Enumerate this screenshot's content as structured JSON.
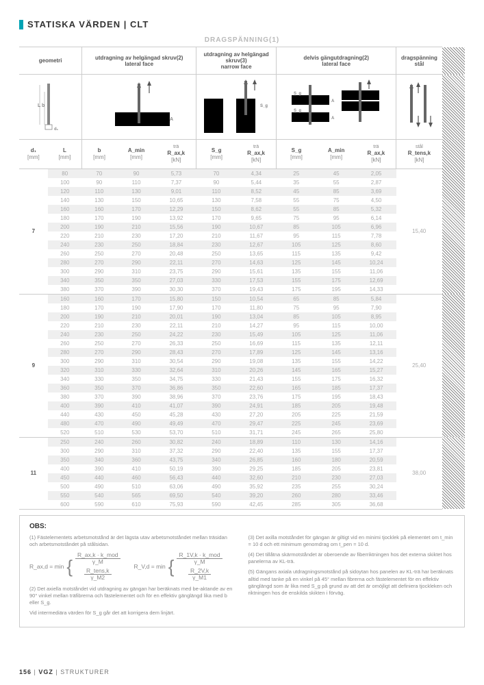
{
  "title": "STATISKA VÄRDEN | CLT",
  "super_header": "DRAGSPÄNNING(1)",
  "group_headers": [
    "geometri",
    "utdragning av helgängad skruv(2)\nlateral face",
    "utdragning av helgängad skruv(3)\nnarrow face",
    "delvis gängutdragning(2)\nlateral face",
    "dragspänning\nstål"
  ],
  "col_syms": [
    "d₁",
    "L",
    "b",
    "A_min",
    "R_ax,k",
    "S_g",
    "R_ax,k",
    "S_g",
    "A_min",
    "R_ax,k",
    "R_tens,k"
  ],
  "col_labels": [
    "",
    "",
    "",
    "",
    "trä",
    "",
    "trä",
    "",
    "",
    "trä",
    "stål"
  ],
  "col_units": [
    "[mm]",
    "[mm]",
    "[mm]",
    "[mm]",
    "[kN]",
    "[mm]",
    "[kN]",
    "[mm]",
    "[mm]",
    "[kN]",
    "[kN]"
  ],
  "groups": [
    {
      "d": "7",
      "last": "15,40",
      "rows": [
        [
          "80",
          "70",
          "90",
          "5,73",
          "70",
          "4,34",
          "25",
          "45",
          "2,05"
        ],
        [
          "100",
          "90",
          "110",
          "7,37",
          "90",
          "5,44",
          "35",
          "55",
          "2,87"
        ],
        [
          "120",
          "110",
          "130",
          "9,01",
          "110",
          "8,52",
          "45",
          "85",
          "3,69"
        ],
        [
          "140",
          "130",
          "150",
          "10,65",
          "130",
          "7,58",
          "55",
          "75",
          "4,50"
        ],
        [
          "160",
          "160",
          "170",
          "12,29",
          "150",
          "8,62",
          "55",
          "85",
          "5,32"
        ],
        [
          "180",
          "170",
          "190",
          "13,92",
          "170",
          "9,65",
          "75",
          "95",
          "6,14"
        ],
        [
          "200",
          "190",
          "210",
          "15,56",
          "190",
          "10,67",
          "85",
          "105",
          "6,96"
        ],
        [
          "220",
          "210",
          "230",
          "17,20",
          "210",
          "11,67",
          "95",
          "115",
          "7,78"
        ],
        [
          "240",
          "230",
          "250",
          "18,84",
          "230",
          "12,67",
          "105",
          "125",
          "8,60"
        ],
        [
          "260",
          "250",
          "270",
          "20,48",
          "250",
          "13,65",
          "115",
          "135",
          "9,42"
        ],
        [
          "280",
          "270",
          "290",
          "22,11",
          "270",
          "14,63",
          "125",
          "145",
          "10,24"
        ],
        [
          "300",
          "290",
          "310",
          "23,75",
          "290",
          "15,61",
          "135",
          "155",
          "11,06"
        ],
        [
          "340",
          "350",
          "350",
          "27,03",
          "330",
          "17,53",
          "155",
          "175",
          "12,69"
        ],
        [
          "380",
          "370",
          "390",
          "30,30",
          "370",
          "19,43",
          "175",
          "195",
          "14,33"
        ]
      ]
    },
    {
      "d": "9",
      "last": "25,40",
      "rows": [
        [
          "160",
          "160",
          "170",
          "15,80",
          "150",
          "10,54",
          "65",
          "85",
          "5,84"
        ],
        [
          "180",
          "170",
          "190",
          "17,90",
          "170",
          "11,80",
          "75",
          "95",
          "7,90"
        ],
        [
          "200",
          "190",
          "210",
          "20,01",
          "190",
          "13,04",
          "85",
          "105",
          "8,95"
        ],
        [
          "220",
          "210",
          "230",
          "22,11",
          "210",
          "14,27",
          "95",
          "115",
          "10,00"
        ],
        [
          "240",
          "230",
          "250",
          "24,22",
          "230",
          "15,49",
          "105",
          "125",
          "11,06"
        ],
        [
          "260",
          "250",
          "270",
          "26,33",
          "250",
          "16,69",
          "115",
          "135",
          "12,11"
        ],
        [
          "280",
          "270",
          "290",
          "28,43",
          "270",
          "17,89",
          "125",
          "145",
          "13,16"
        ],
        [
          "300",
          "290",
          "310",
          "30,54",
          "290",
          "19,08",
          "135",
          "155",
          "14,22"
        ],
        [
          "320",
          "310",
          "330",
          "32,64",
          "310",
          "20,26",
          "145",
          "165",
          "15,27"
        ],
        [
          "340",
          "330",
          "350",
          "34,75",
          "330",
          "21,43",
          "155",
          "175",
          "16,32"
        ],
        [
          "360",
          "350",
          "370",
          "36,86",
          "350",
          "22,60",
          "165",
          "185",
          "17,37"
        ],
        [
          "380",
          "370",
          "390",
          "38,96",
          "370",
          "23,76",
          "175",
          "195",
          "18,43"
        ],
        [
          "400",
          "390",
          "410",
          "41,07",
          "390",
          "24,91",
          "185",
          "205",
          "19,48"
        ],
        [
          "440",
          "430",
          "450",
          "45,28",
          "430",
          "27,20",
          "205",
          "225",
          "21,59"
        ],
        [
          "480",
          "470",
          "490",
          "49,49",
          "470",
          "29,47",
          "225",
          "245",
          "23,69"
        ],
        [
          "520",
          "510",
          "530",
          "53,70",
          "510",
          "31,71",
          "245",
          "265",
          "25,80"
        ]
      ]
    },
    {
      "d": "11",
      "last": "38,00",
      "rows": [
        [
          "250",
          "240",
          "260",
          "30,82",
          "240",
          "18,89",
          "110",
          "130",
          "14,16"
        ],
        [
          "300",
          "290",
          "310",
          "37,32",
          "290",
          "22,40",
          "135",
          "155",
          "17,37"
        ],
        [
          "350",
          "340",
          "360",
          "43,75",
          "340",
          "26,85",
          "160",
          "180",
          "20,59"
        ],
        [
          "400",
          "390",
          "410",
          "50,19",
          "390",
          "29,25",
          "185",
          "205",
          "23,81"
        ],
        [
          "450",
          "440",
          "460",
          "56,43",
          "440",
          "32,60",
          "210",
          "230",
          "27,03"
        ],
        [
          "500",
          "490",
          "510",
          "63,06",
          "490",
          "35,92",
          "235",
          "255",
          "30,24"
        ],
        [
          "550",
          "540",
          "565",
          "69,50",
          "540",
          "39,20",
          "260",
          "280",
          "33,46"
        ],
        [
          "600",
          "590",
          "610",
          "75,93",
          "590",
          "42,45",
          "285",
          "305",
          "36,68"
        ]
      ]
    }
  ],
  "obs_title": "OBS:",
  "notes_left": [
    "(1) Fästelementets arbetsmotstånd är det lägsta utav arbetsmotståndet mellan träsidan och arbetsmotståndet på stålsidan.",
    "(2) Det axiella motståndet vid utdragning av gängan har beräknats med be-aktande av en 90° vinkel mellan träfibrerna och fästelementet och för en effektiv gänglängd lika med b eller S_g.",
    "Vid intermediära värden för S_g går det att korrigera dem linjärt."
  ],
  "notes_right": [
    "(3) Det axilla motståndet för gängan är giltigt vid en minimi tjocklek på elementet om t_min = 10 d och ett minimum genomdrag om t_pen = 10 d.",
    "(4) Det tillåtna skärmotståndet är oberoende av fiberriktningen hos det externa skiktet hos panelerna av KL-trä.",
    "(5) Gängans axiala utdragningsmotstånd på sidoytan hos panelen av KL-trä har beräknats alltid med tanke på en vinkel på 45° mellan fibrerna och fästelementet för en effektiv gänglängd som är lika med S_g på grund av att det är omöjligt att definiera tjockleken och riktningen hos de enskilda skikten i förväg."
  ],
  "formula": {
    "lhs": "R_ax,d = min",
    "n1": "R_ax,k · k_mod",
    "d1": "γ_M",
    "n2": "R_tens,k",
    "d2": "γ_M2",
    "mid": "R_V,d = min",
    "n3": "R_1V,k · k_mod",
    "d3": "γ_M",
    "n4": "R_2V,k",
    "d4": "γ_M1"
  },
  "footer": {
    "page": "156",
    "sep": " | ",
    "brand": "VGZ",
    "sep2": " | ",
    "section": "STRUKTURER"
  }
}
